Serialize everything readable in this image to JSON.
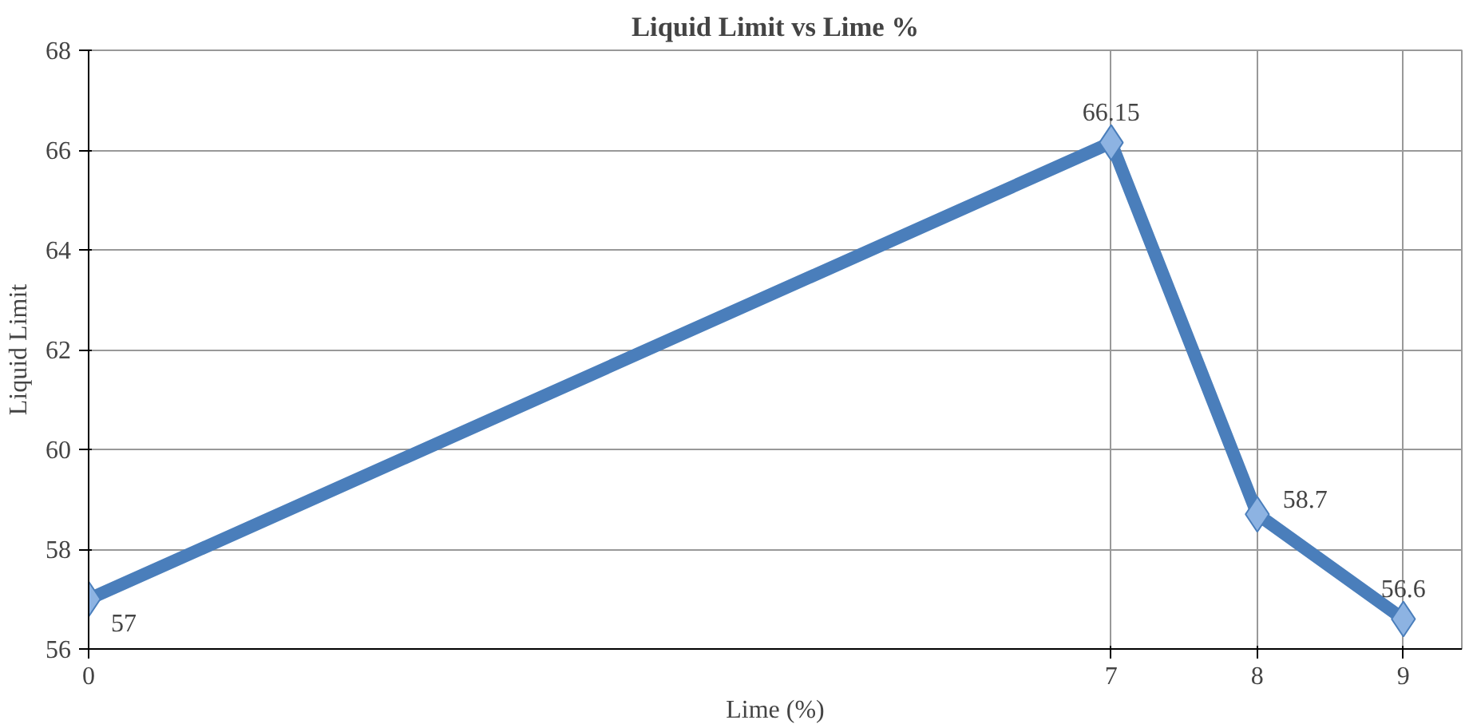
{
  "chart_data": {
    "type": "line",
    "title": "Liquid Limit vs Lime %",
    "xlabel": "Lime (%)",
    "ylabel": "Liquid Limit",
    "x": [
      0,
      7,
      8,
      9
    ],
    "series": [
      {
        "color": "#4a7ebb",
        "values": [
          57,
          66.15,
          58.7,
          56.6
        ]
      }
    ],
    "xlim": [
      0,
      9.4
    ],
    "xticks": [
      0,
      7,
      8,
      9
    ],
    "ylim": [
      56,
      68
    ],
    "yticks": [
      56,
      58,
      60,
      62,
      64,
      66,
      68
    ],
    "grid": true,
    "marker": "diamond",
    "line_style": "solid",
    "data_labels": true
  }
}
